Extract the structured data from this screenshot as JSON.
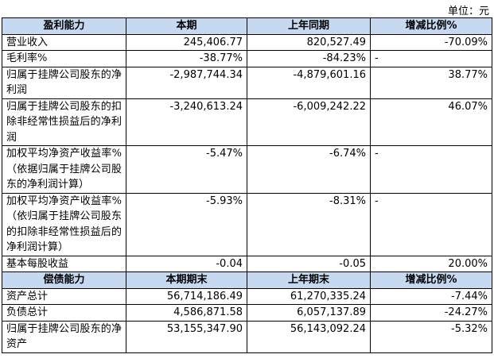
{
  "unit": "单位：元",
  "sections": [
    {
      "header": [
        "盈利能力",
        "本期",
        "上年同期",
        "增减比例%"
      ],
      "rows": [
        [
          "营业收入",
          "245,406.77",
          "820,527.49",
          "-70.09%"
        ],
        [
          "毛利率%",
          "-38.77%",
          "-84.23%",
          "-"
        ],
        [
          "归属于挂牌公司股东的净利润",
          "-2,987,744.34",
          "-4,879,601.16",
          "38.77%"
        ],
        [
          "归属于挂牌公司股东的扣除非经常性损益后的净利润",
          "-3,240,613.24",
          "-6,009,242.22",
          "46.07%"
        ],
        [
          "加权平均净资产收益率%（依据归属于挂牌公司股东的净利润计算）",
          "-5.47%",
          "-6.74%",
          "-"
        ],
        [
          "加权平均净资产收益率%（依归属于挂牌公司股东的扣除非经常性损益后的净利润计算）",
          "-5.93%",
          "-8.31%",
          "-"
        ],
        [
          "基本每股收益",
          "-0.04",
          "-0.05",
          "20.00%"
        ]
      ]
    },
    {
      "header": [
        "偿债能力",
        "本期期末",
        "上年期末",
        "增减比例%"
      ],
      "rows": [
        [
          "资产总计",
          "56,714,186.49",
          "61,270,335.24",
          "-7.44%"
        ],
        [
          "负债总计",
          "4,586,871.58",
          "6,057,137.89",
          "-24.27%"
        ],
        [
          "归属于挂牌公司股东的净资产",
          "53,155,347.90",
          "56,143,092.24",
          "-5.32%"
        ]
      ]
    }
  ]
}
